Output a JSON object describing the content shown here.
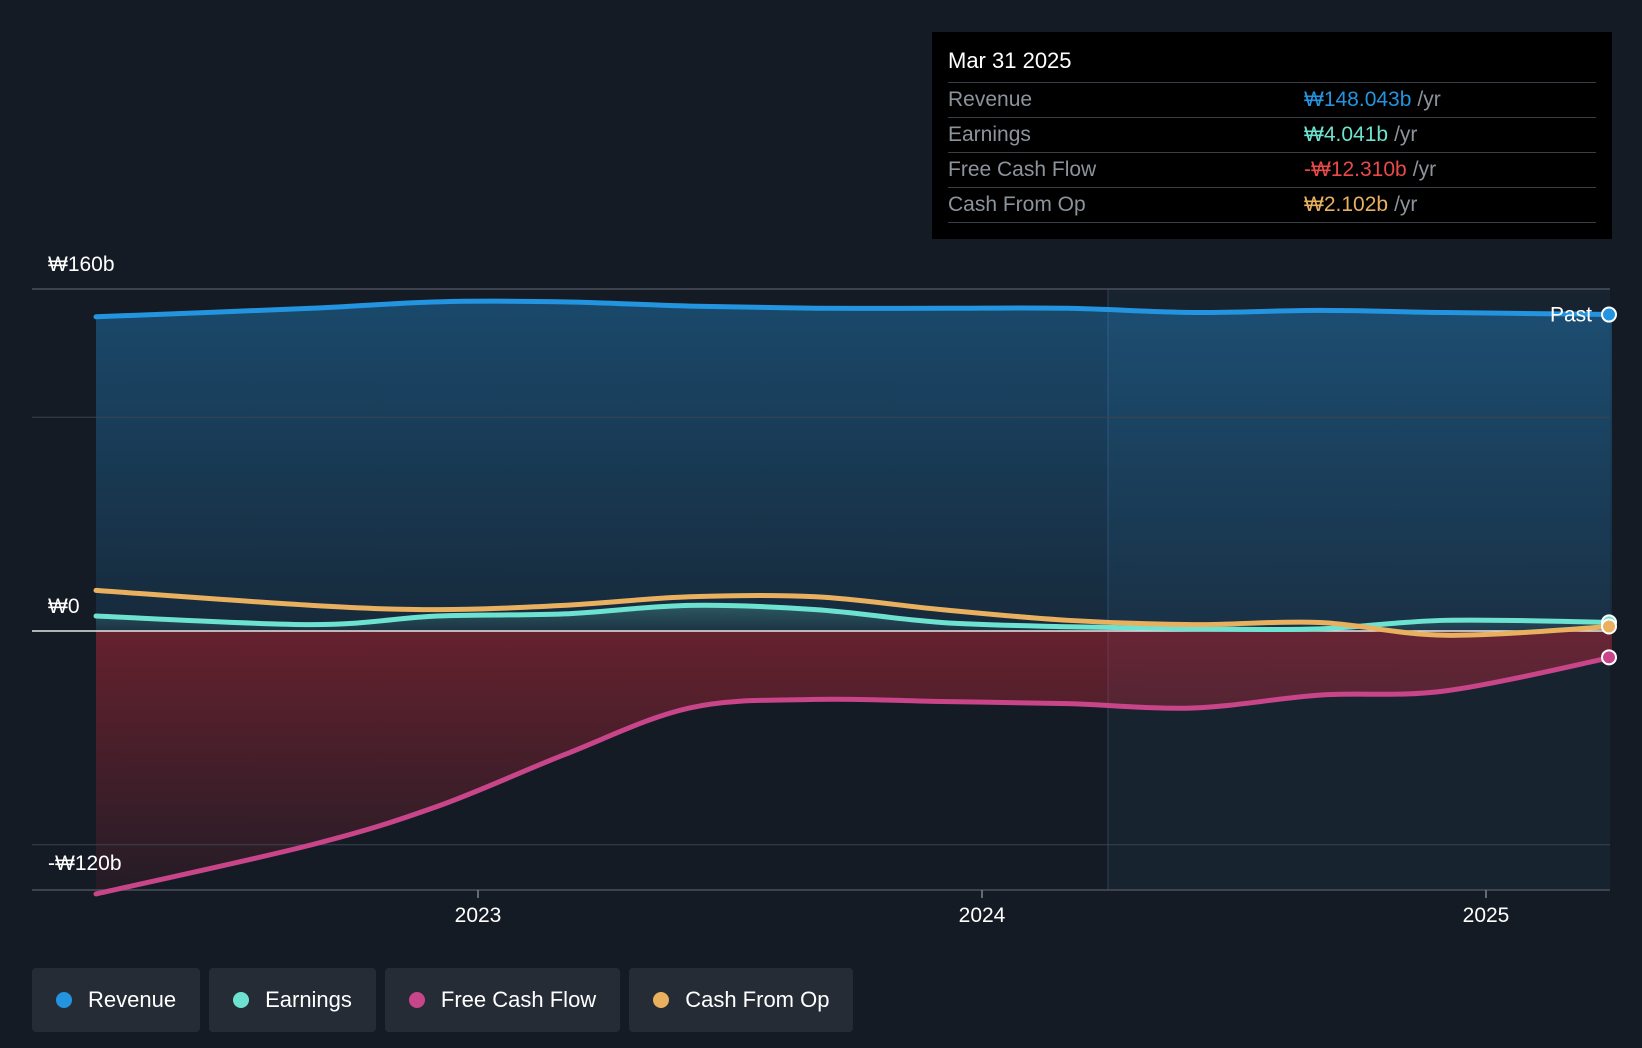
{
  "colors": {
    "background": "#151b24",
    "revenue": "#2394df",
    "earnings": "#6ee2d0",
    "free_cash_flow": "#c8458a",
    "cash_from_op": "#e8b05f",
    "fcf_negative_text": "#e84a4a"
  },
  "tooltip": {
    "date": "Mar 31 2025",
    "rows": [
      {
        "label": "Revenue",
        "value": "₩148.043b",
        "unit": "/yr",
        "color": "#2394df"
      },
      {
        "label": "Earnings",
        "value": "₩4.041b",
        "unit": "/yr",
        "color": "#6ee2d0"
      },
      {
        "label": "Free Cash Flow",
        "value": "-₩12.310b",
        "unit": "/yr",
        "color": "#e84a4a"
      },
      {
        "label": "Cash From Op",
        "value": "₩2.102b",
        "unit": "/yr",
        "color": "#e8b05f"
      }
    ]
  },
  "past_label": "Past",
  "legend": [
    {
      "label": "Revenue",
      "color": "#2394df"
    },
    {
      "label": "Earnings",
      "color": "#6ee2d0"
    },
    {
      "label": "Free Cash Flow",
      "color": "#c8458a"
    },
    {
      "label": "Cash From Op",
      "color": "#e8b05f"
    }
  ],
  "chart_data": {
    "type": "line",
    "y_tick_labels": [
      "₩160b",
      "₩0",
      "-₩120b"
    ],
    "y_ticks": [
      160,
      0,
      -120
    ],
    "ylim": [
      -145,
      160
    ],
    "x_tick_labels": [
      "2023",
      "2024",
      "2025"
    ],
    "x_ticks": [
      2023.0,
      2024.0,
      2025.0
    ],
    "xlim": [
      2022.3,
      2025.25
    ],
    "past_boundary_x": 2024.25,
    "grid": true,
    "legend_position": "bottom-left",
    "x": [
      2022.42,
      2022.67,
      2022.92,
      2023.17,
      2023.42,
      2023.67,
      2023.92,
      2024.17,
      2024.42,
      2024.67,
      2024.92,
      2025.25
    ],
    "series": [
      {
        "name": "Revenue",
        "values": [
          147,
          151,
          154,
          154,
          152,
          151,
          151,
          151,
          149,
          150,
          149,
          148.043
        ]
      },
      {
        "name": "Earnings",
        "values": [
          7,
          3,
          7,
          8,
          12,
          10,
          4,
          2,
          1,
          1,
          5,
          4.041
        ]
      },
      {
        "name": "Free Cash Flow",
        "values": [
          -123,
          -100,
          -82,
          -58,
          -36,
          -32,
          -33,
          -34,
          -36,
          -30,
          -28,
          -12.31
        ]
      },
      {
        "name": "Cash From Op",
        "values": [
          19,
          12,
          10,
          12,
          16,
          16,
          10,
          5,
          3,
          4,
          -2,
          2.102
        ]
      }
    ]
  }
}
